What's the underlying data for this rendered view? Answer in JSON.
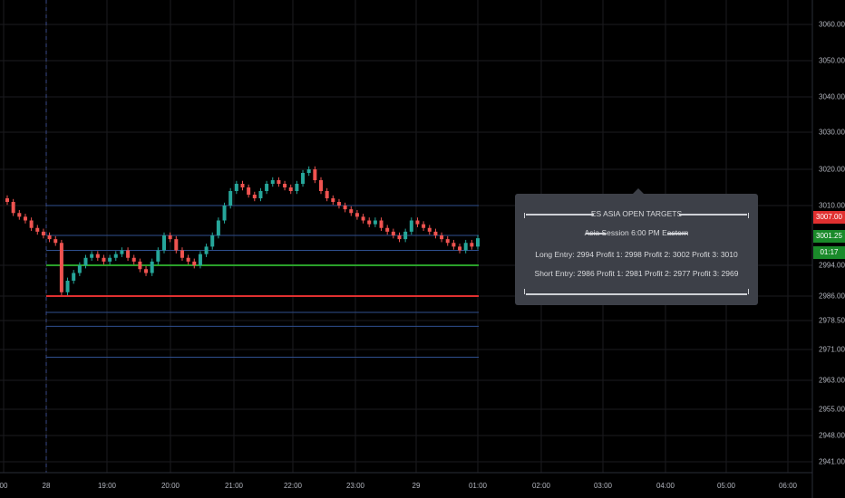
{
  "chart_data": {
    "type": "candlestick",
    "y_axis": {
      "ticks": [
        "3060.00",
        "3050.00",
        "3040.00",
        "3030.00",
        "3020.00",
        "3010.00",
        "2994.00",
        "2986.00",
        "2978.50",
        "2971.00",
        "2963.00",
        "2955.00",
        "2948.00",
        "2941.00"
      ],
      "range": [
        2938,
        3065
      ]
    },
    "x_axis": {
      "ticks": [
        "00",
        "28",
        "19:00",
        "20:00",
        "21:00",
        "22:00",
        "23:00",
        "29",
        "01:00",
        "02:00",
        "03:00",
        "04:00",
        "05:00",
        "06:00"
      ]
    },
    "price_tags": [
      {
        "label": "3007.00",
        "color": "#e03030"
      },
      {
        "label": "3001.25",
        "color": "#1a8a2a"
      },
      {
        "label": "01:17",
        "color": "#1a8a2a"
      }
    ],
    "levels": [
      {
        "name": "short-profit-3",
        "value": 2969,
        "color": "#2f4f8f"
      },
      {
        "name": "short-profit-2",
        "value": 2977,
        "color": "#2f4f8f"
      },
      {
        "name": "short-profit-1",
        "value": 2981,
        "color": "#2f4f8f"
      },
      {
        "name": "short-entry",
        "value": 2986,
        "color": "#e03030"
      },
      {
        "name": "long-entry",
        "value": 2994,
        "color": "#2aa02a"
      },
      {
        "name": "long-profit-1",
        "value": 2998,
        "color": "#2f4f8f"
      },
      {
        "name": "long-profit-2",
        "value": 3002,
        "color": "#2f4f8f"
      },
      {
        "name": "long-profit-3",
        "value": 3010,
        "color": "#2f4f8f"
      }
    ],
    "series": [
      {
        "name": "ES",
        "type": "candlestick",
        "close": [
          3011,
          3008,
          3007,
          3006,
          3004,
          3003,
          3002,
          3001,
          3000,
          2987,
          2990,
          2992,
          2994,
          2996,
          2997,
          2996,
          2995,
          2996,
          2997,
          2998,
          2996,
          2995,
          2993,
          2992,
          2995,
          2998,
          3002,
          3001,
          2998,
          2996,
          2995,
          2994,
          2997,
          2999,
          3002,
          3006,
          3010,
          3014,
          3016,
          3015,
          3013,
          3012,
          3014,
          3016,
          3017,
          3016,
          3015,
          3014,
          3016,
          3019,
          3020,
          3017,
          3014,
          3012,
          3011,
          3010,
          3009,
          3008,
          3007,
          3006,
          3005,
          3006,
          3004,
          3003,
          3002,
          3001,
          3003,
          3006,
          3005,
          3004,
          3003,
          3002,
          3001,
          3000,
          2999,
          2998,
          3000,
          2999,
          3001.25
        ]
      }
    ]
  },
  "tooltip": {
    "title": "ES ASIA OPEN TARGETS",
    "session": "Asia Session 6:00 PM Eastern",
    "long_line": "Long Entry: 2994   Profit 1: 2998   Profit 2: 3002   Profit 3: 3010",
    "short_line": "Short Entry: 2986   Profit 1: 2981   Profit 2: 2977   Profit 3: 2969"
  },
  "colors": {
    "up": "#26a69a",
    "down": "#ef5350",
    "grid": "#1b1b1f",
    "axis": "#2a2e39"
  }
}
